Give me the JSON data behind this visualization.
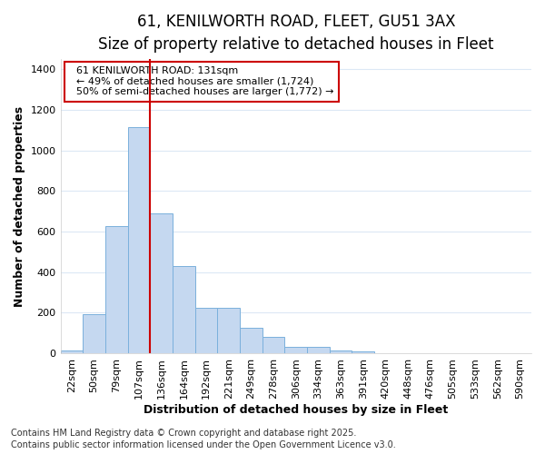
{
  "title_line1": "61, KENILWORTH ROAD, FLEET, GU51 3AX",
  "title_line2": "Size of property relative to detached houses in Fleet",
  "xlabel": "Distribution of detached houses by size in Fleet",
  "ylabel": "Number of detached properties",
  "categories": [
    "22sqm",
    "50sqm",
    "79sqm",
    "107sqm",
    "136sqm",
    "164sqm",
    "192sqm",
    "221sqm",
    "249sqm",
    "278sqm",
    "306sqm",
    "334sqm",
    "363sqm",
    "391sqm",
    "420sqm",
    "448sqm",
    "476sqm",
    "505sqm",
    "533sqm",
    "562sqm",
    "590sqm"
  ],
  "values": [
    15,
    193,
    625,
    1115,
    690,
    430,
    222,
    222,
    125,
    80,
    30,
    30,
    12,
    10,
    0,
    0,
    0,
    0,
    0,
    0,
    0
  ],
  "bar_color": "#c5d8f0",
  "bar_edge_color": "#7ab0dc",
  "vline_x": 4,
  "vline_color": "#cc0000",
  "annotation_text": "  61 KENILWORTH ROAD: 131sqm\n  ← 49% of detached houses are smaller (1,724)\n  50% of semi-detached houses are larger (1,772) →",
  "annotation_box_color": "#ffffff",
  "annotation_box_edge": "#cc0000",
  "ylim": [
    0,
    1450
  ],
  "yticks": [
    0,
    200,
    400,
    600,
    800,
    1000,
    1200,
    1400
  ],
  "footer_line1": "Contains HM Land Registry data © Crown copyright and database right 2025.",
  "footer_line2": "Contains public sector information licensed under the Open Government Licence v3.0.",
  "bg_color": "#ffffff",
  "grid_color": "#dce8f5",
  "title_fontsize": 12,
  "subtitle_fontsize": 10.5,
  "label_fontsize": 9,
  "tick_fontsize": 8,
  "footer_fontsize": 7,
  "annot_fontsize": 8
}
